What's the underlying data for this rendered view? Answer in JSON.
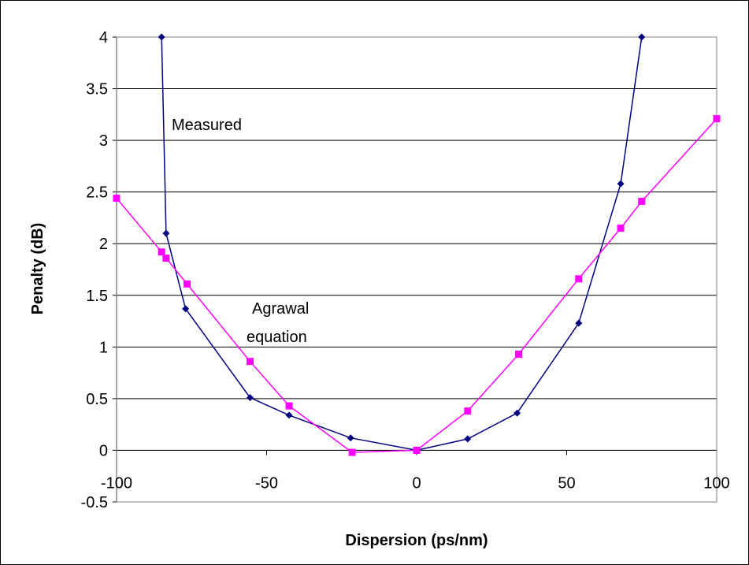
{
  "chart_data": {
    "type": "line",
    "title": "",
    "xlabel": "Dispersion (ps/nm)",
    "ylabel": "Penalty (dB)",
    "xlim": [
      -100,
      100
    ],
    "ylim": [
      -0.5,
      4
    ],
    "xticks": [
      -100,
      -50,
      0,
      50,
      100
    ],
    "yticks": [
      -0.5,
      0,
      0.5,
      1,
      1.5,
      2,
      2.5,
      3,
      3.5,
      4
    ],
    "grid": "horizontal",
    "annotations": [
      {
        "text": "Measured"
      },
      {
        "text": "Agrawal"
      },
      {
        "text": "equation"
      }
    ],
    "series": [
      {
        "color": "#000080",
        "marker": "diamond",
        "points": [
          [
            -85,
            4.0
          ],
          [
            -83.5,
            2.1
          ],
          [
            -77,
            1.37
          ],
          [
            -55.5,
            0.51
          ],
          [
            -42.5,
            0.34
          ],
          [
            -22,
            0.12
          ],
          [
            0,
            0.0
          ],
          [
            17,
            0.11
          ],
          [
            33.5,
            0.36
          ],
          [
            54,
            1.23
          ],
          [
            68,
            2.58
          ],
          [
            75,
            4.0
          ]
        ]
      },
      {
        "color": "#ff00ff",
        "marker": "square",
        "points": [
          [
            -100,
            2.44
          ],
          [
            -85,
            1.92
          ],
          [
            -83.5,
            1.86
          ],
          [
            -76.5,
            1.61
          ],
          [
            -55.5,
            0.86
          ],
          [
            -42.5,
            0.43
          ],
          [
            -21.5,
            -0.02
          ],
          [
            0,
            0.0
          ],
          [
            17,
            0.38
          ],
          [
            34,
            0.93
          ],
          [
            54,
            1.66
          ],
          [
            68,
            2.15
          ],
          [
            75,
            2.41
          ],
          [
            100,
            3.21
          ]
        ]
      }
    ]
  }
}
